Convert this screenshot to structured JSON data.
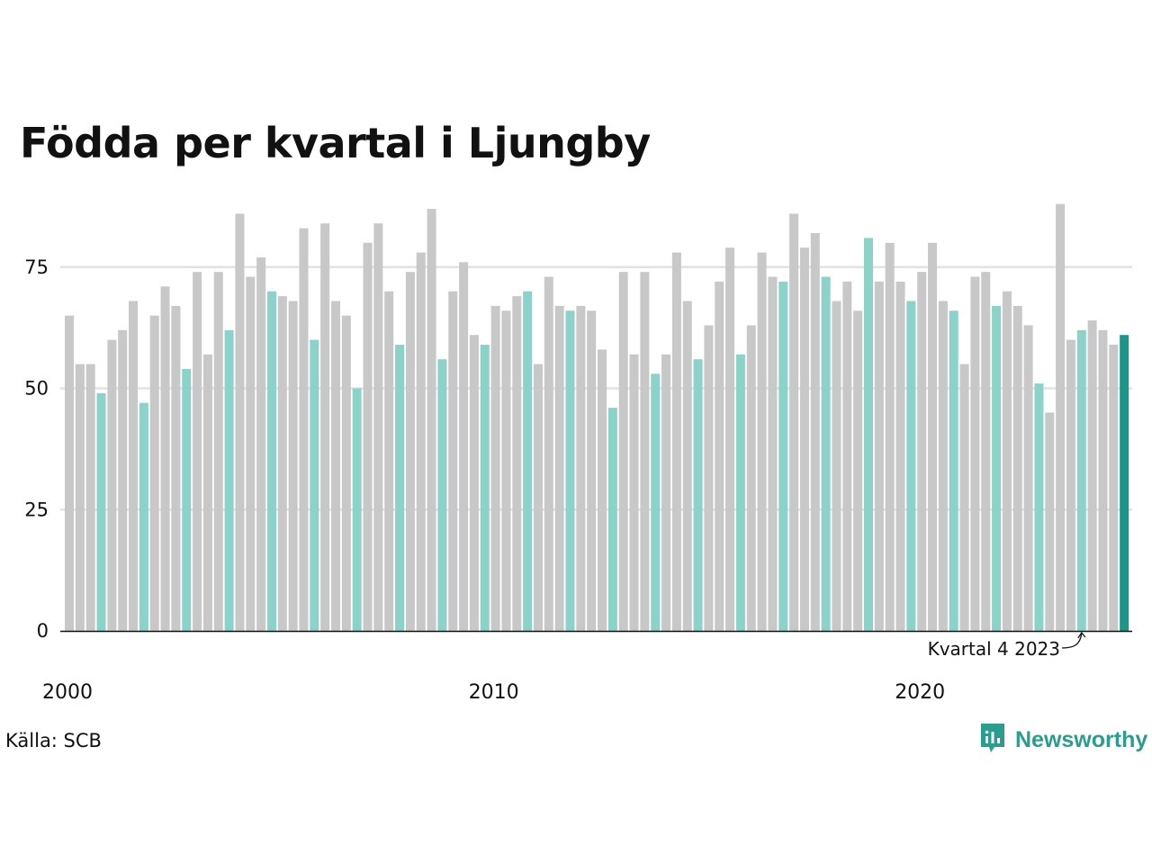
{
  "title": "Födda per kvartal i Ljungby",
  "source": "Källa: SCB",
  "brand": {
    "name": "Newsworthy",
    "color": "#2a9d8f"
  },
  "chart_data": {
    "type": "bar",
    "title": "Födda per kvartal i Ljungby",
    "xlabel": "",
    "ylabel": "",
    "ylim": [
      0,
      90
    ],
    "yticks": [
      0,
      25,
      50,
      75
    ],
    "xtick_labels": [
      {
        "label": "2000",
        "index": 0
      },
      {
        "label": "2010",
        "index": 40
      },
      {
        "label": "2020",
        "index": 80
      }
    ],
    "grid": true,
    "colors": {
      "default": "#c8c8c8",
      "quarter4": "#8bd3c9",
      "latest": "#1f9589",
      "gridline": "#e2e2e2",
      "axis": "#111111"
    },
    "annotation": {
      "label": "Kvartal 4 2023",
      "index": 95
    },
    "start_year": 2000,
    "values": [
      65,
      55,
      55,
      49,
      60,
      62,
      68,
      47,
      65,
      71,
      67,
      54,
      74,
      57,
      74,
      62,
      86,
      73,
      77,
      70,
      69,
      68,
      83,
      60,
      84,
      68,
      65,
      50,
      80,
      84,
      70,
      59,
      74,
      78,
      87,
      56,
      70,
      76,
      61,
      59,
      67,
      66,
      69,
      70,
      55,
      73,
      67,
      66,
      67,
      66,
      58,
      46,
      74,
      57,
      74,
      53,
      57,
      78,
      68,
      56,
      63,
      72,
      79,
      57,
      63,
      78,
      73,
      72,
      86,
      79,
      82,
      73,
      68,
      72,
      66,
      81,
      72,
      80,
      72,
      68,
      74,
      80,
      68,
      66,
      55,
      73,
      74,
      67,
      70,
      67,
      63,
      51,
      45,
      88,
      60,
      62,
      64,
      62,
      59,
      61
    ]
  }
}
